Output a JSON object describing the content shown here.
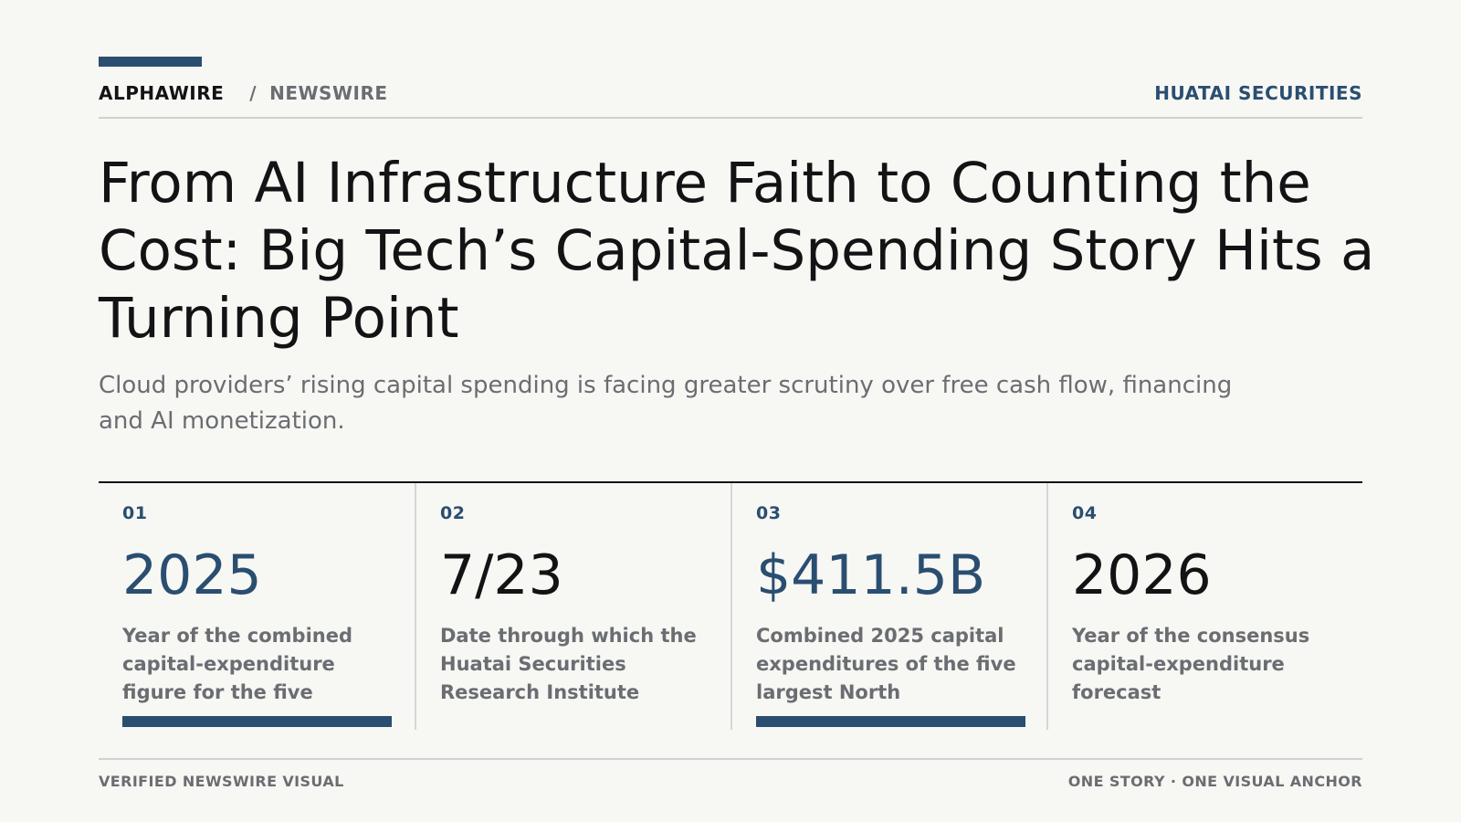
{
  "header": {
    "brand": "ALPHAWIRE",
    "separator": "/",
    "section": "NEWSWIRE",
    "source": "HUATAI SECURITIES"
  },
  "article": {
    "headline": "From AI Infrastructure Faith to Counting the Cost: Big Tech’s Capital-Spending Story Hits a Turning Point",
    "dek": "Cloud providers’ rising capital spending is facing greater scrutiny over free cash flow, financing and AI monetization."
  },
  "stats": [
    {
      "index": "01",
      "value": "2025",
      "label": "Year of the combined capital-expenditure figure for the five",
      "highlighted": true
    },
    {
      "index": "02",
      "value": "7/23",
      "label": "Date through which the Huatai Securities Research Institute",
      "highlighted": false
    },
    {
      "index": "03",
      "value": "$411.5B",
      "label": "Combined 2025 capital expenditures of the five largest North",
      "highlighted": true
    },
    {
      "index": "04",
      "value": "2026",
      "label": "Year of the consensus capital-expenditure forecast",
      "highlighted": false
    }
  ],
  "footer": {
    "left": "VERIFIED NEWSWIRE VISUAL",
    "right": "ONE STORY · ONE VISUAL ANCHOR"
  },
  "colors": {
    "accent": "#2a4e70",
    "text": "#121314",
    "muted": "#6a6d71",
    "background": "#f7f7f4"
  }
}
